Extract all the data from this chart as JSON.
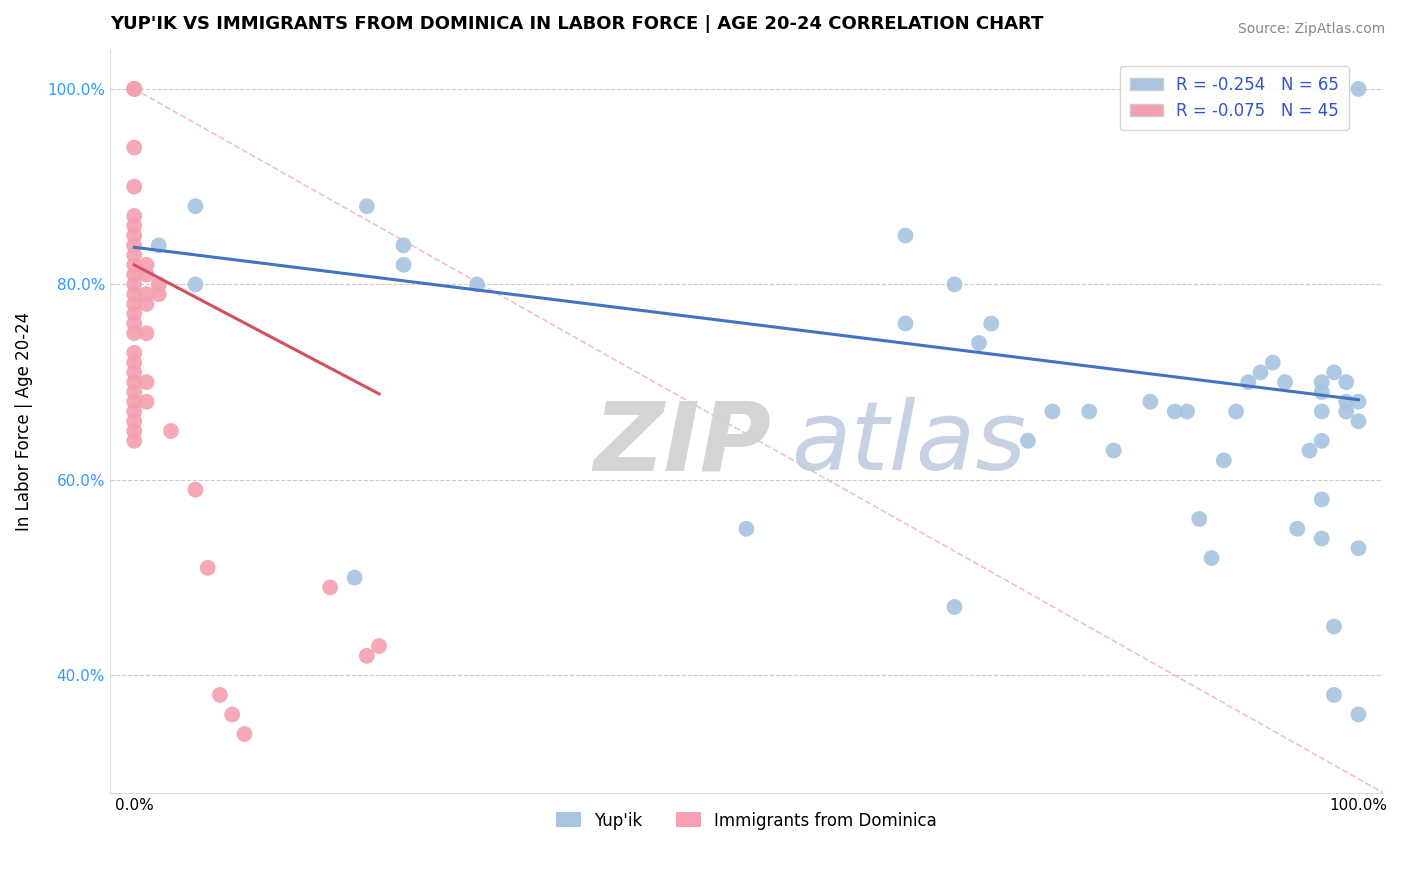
{
  "title": "YUP'IK VS IMMIGRANTS FROM DOMINICA IN LABOR FORCE | AGE 20-24 CORRELATION CHART",
  "source": "Source: ZipAtlas.com",
  "ylabel": "In Labor Force | Age 20-24",
  "xlim": [
    -0.02,
    1.02
  ],
  "ylim": [
    0.28,
    1.04
  ],
  "yticks": [
    0.4,
    0.6,
    0.8,
    1.0
  ],
  "ytick_labels": [
    "40.0%",
    "60.0%",
    "80.0%",
    "100.0%"
  ],
  "xticks": [
    0.0,
    0.2,
    0.4,
    0.6,
    0.8,
    1.0
  ],
  "xtick_labels": [
    "0.0%",
    "",
    "",
    "",
    "",
    "100.0%"
  ],
  "legend_labels": [
    "Yup'ik",
    "Immigrants from Dominica"
  ],
  "blue_R": -0.254,
  "blue_N": 65,
  "pink_R": -0.075,
  "pink_N": 45,
  "blue_color": "#a8c4e0",
  "pink_color": "#f4a0b0",
  "blue_line_color": "#4472c4",
  "pink_line_color": "#d45060",
  "blue_scatter_x": [
    0.0,
    0.02,
    0.05,
    0.05,
    0.18,
    0.19,
    0.22,
    0.22,
    0.28,
    0.5,
    0.63,
    0.63,
    0.67,
    0.67,
    0.69,
    0.7,
    0.73,
    0.75,
    0.78,
    0.8,
    0.83,
    0.85,
    0.86,
    0.87,
    0.88,
    0.89,
    0.9,
    0.91,
    0.92,
    0.93,
    0.94,
    0.95,
    0.96,
    0.97,
    0.97,
    0.97,
    0.97,
    0.97,
    0.97,
    0.98,
    0.98,
    0.98,
    0.99,
    0.99,
    0.99,
    1.0,
    1.0,
    1.0,
    1.0,
    1.0
  ],
  "blue_scatter_y": [
    1.0,
    0.84,
    0.8,
    0.88,
    0.5,
    0.88,
    0.82,
    0.84,
    0.8,
    0.55,
    0.85,
    0.76,
    0.8,
    0.47,
    0.74,
    0.76,
    0.64,
    0.67,
    0.67,
    0.63,
    0.68,
    0.67,
    0.67,
    0.56,
    0.52,
    0.62,
    0.67,
    0.7,
    0.71,
    0.72,
    0.7,
    0.55,
    0.63,
    0.54,
    0.58,
    0.64,
    0.67,
    0.69,
    0.7,
    0.38,
    0.45,
    0.71,
    0.67,
    0.68,
    0.7,
    0.36,
    0.53,
    0.66,
    0.68,
    1.0
  ],
  "pink_scatter_x": [
    0.0,
    0.0,
    0.0,
    0.0,
    0.0,
    0.0,
    0.0,
    0.0,
    0.0,
    0.0,
    0.0,
    0.0,
    0.0,
    0.0,
    0.0,
    0.0,
    0.0,
    0.0,
    0.0,
    0.0,
    0.01,
    0.01,
    0.01,
    0.01,
    0.01,
    0.01,
    0.01,
    0.02,
    0.02,
    0.03,
    0.05,
    0.06,
    0.07,
    0.08,
    0.09,
    0.16,
    0.19,
    0.2,
    0.0,
    0.0,
    0.0,
    0.0,
    0.0,
    0.0,
    0.0
  ],
  "pink_scatter_y": [
    1.0,
    1.0,
    0.94,
    0.9,
    0.87,
    0.86,
    0.85,
    0.84,
    0.83,
    0.82,
    0.81,
    0.8,
    0.79,
    0.78,
    0.77,
    0.76,
    0.75,
    0.73,
    0.72,
    0.71,
    0.82,
    0.81,
    0.79,
    0.78,
    0.75,
    0.7,
    0.68,
    0.8,
    0.79,
    0.65,
    0.59,
    0.51,
    0.38,
    0.36,
    0.34,
    0.49,
    0.42,
    0.43,
    0.7,
    0.69,
    0.68,
    0.67,
    0.66,
    0.65,
    0.64
  ],
  "blue_trend_x": [
    0.0,
    1.0
  ],
  "blue_trend_y": [
    0.838,
    0.682
  ],
  "pink_trend_x": [
    0.0,
    0.2
  ],
  "pink_trend_y": [
    0.82,
    0.688
  ]
}
